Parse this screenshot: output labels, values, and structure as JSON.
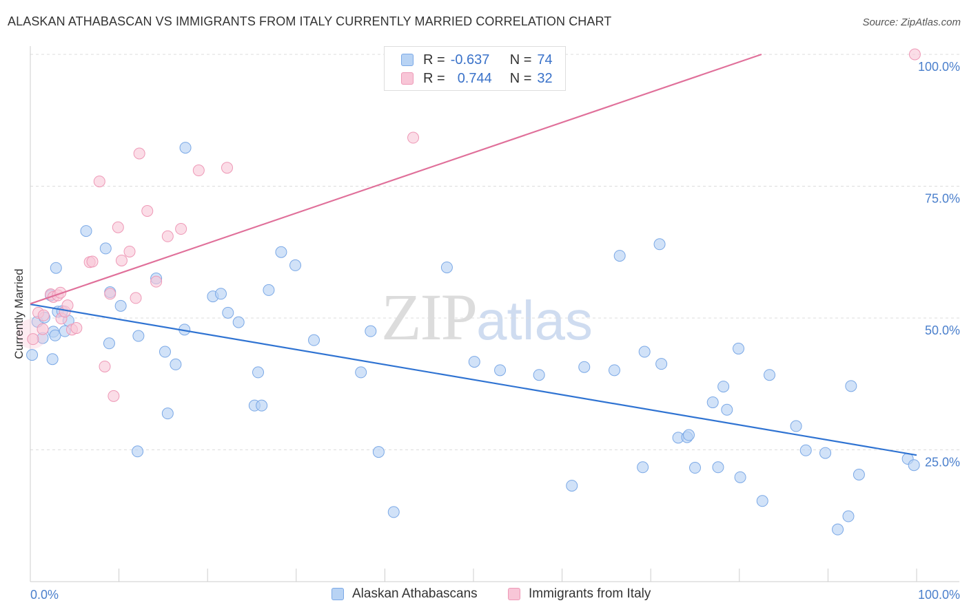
{
  "title": "ALASKAN ATHABASCAN VS IMMIGRANTS FROM ITALY CURRENTLY MARRIED CORRELATION CHART",
  "source": "Source: ZipAtlas.com",
  "watermark": {
    "zip": "ZIP",
    "atlas": "atlas"
  },
  "legend": {
    "rows": [
      {
        "r_label": "R =",
        "r_value": "-0.637",
        "n_label": "N =",
        "n_value": "74"
      },
      {
        "r_label": "R =",
        "r_value": "0.744",
        "n_label": "N =",
        "n_value": "32"
      }
    ]
  },
  "bottom_legend": [
    "Alaskan Athabascans",
    "Immigrants from Italy"
  ],
  "colors": {
    "blue_fill": "#b8d3f4",
    "blue_stroke": "#7aa8e6",
    "blue_line": "#2f73d2",
    "pink_fill": "#f8c6d7",
    "pink_stroke": "#ee98b6",
    "pink_line": "#e0709a",
    "grid": "#dcdcdc",
    "tick_text": "#4a7fcc"
  },
  "chart_data": {
    "type": "scatter",
    "title": "ALASKAN ATHABASCAN VS IMMIGRANTS FROM ITALY CURRENTLY MARRIED CORRELATION CHART",
    "xlabel": "",
    "ylabel": "Currently Married",
    "xlim": [
      0,
      100
    ],
    "ylim": [
      0,
      100
    ],
    "x_tick_labels": [
      "0.0%",
      "100.0%"
    ],
    "y_ticks": [
      {
        "value": 25,
        "label": "25.0%"
      },
      {
        "value": 50,
        "label": "50.0%"
      },
      {
        "value": 75,
        "label": "75.0%"
      },
      {
        "value": 100,
        "label": "100.0%"
      }
    ],
    "grid": "horizontal dashed",
    "legend_position": "top-center",
    "series": [
      {
        "name": "Alaskan Athabascans",
        "r": -0.637,
        "n": 74,
        "trend": {
          "x": [
            0,
            100
          ],
          "y": [
            52.6,
            24.0
          ]
        },
        "points": [
          [
            0.2,
            43.0
          ],
          [
            0.8,
            49.3
          ],
          [
            1.4,
            46.2
          ],
          [
            1.6,
            50.1
          ],
          [
            2.3,
            54.3
          ],
          [
            2.5,
            42.2
          ],
          [
            2.6,
            47.4
          ],
          [
            2.8,
            46.7
          ],
          [
            2.9,
            59.5
          ],
          [
            3.1,
            51.2
          ],
          [
            3.6,
            51.3
          ],
          [
            3.9,
            47.5
          ],
          [
            4.3,
            49.5
          ],
          [
            6.3,
            66.5
          ],
          [
            8.5,
            63.2
          ],
          [
            8.9,
            45.2
          ],
          [
            9.0,
            54.9
          ],
          [
            10.2,
            52.3
          ],
          [
            12.1,
            24.7
          ],
          [
            12.2,
            46.6
          ],
          [
            14.2,
            57.5
          ],
          [
            15.2,
            43.6
          ],
          [
            15.5,
            31.9
          ],
          [
            16.4,
            41.2
          ],
          [
            17.4,
            47.8
          ],
          [
            17.5,
            82.3
          ],
          [
            20.6,
            54.1
          ],
          [
            21.5,
            54.6
          ],
          [
            22.3,
            51.0
          ],
          [
            23.5,
            49.2
          ],
          [
            25.3,
            33.4
          ],
          [
            25.7,
            39.7
          ],
          [
            26.1,
            33.4
          ],
          [
            26.9,
            55.3
          ],
          [
            28.3,
            62.5
          ],
          [
            29.9,
            60.0
          ],
          [
            32.0,
            45.8
          ],
          [
            37.3,
            39.7
          ],
          [
            38.4,
            47.5
          ],
          [
            39.3,
            24.6
          ],
          [
            41.0,
            13.2
          ],
          [
            50.1,
            41.7
          ],
          [
            53.0,
            40.1
          ],
          [
            57.4,
            39.2
          ],
          [
            61.1,
            18.2
          ],
          [
            62.5,
            40.7
          ],
          [
            65.9,
            40.1
          ],
          [
            66.5,
            61.8
          ],
          [
            69.1,
            21.7
          ],
          [
            69.3,
            43.6
          ],
          [
            71.0,
            64.0
          ],
          [
            71.2,
            41.3
          ],
          [
            73.1,
            27.3
          ],
          [
            74.1,
            27.4
          ],
          [
            74.3,
            27.8
          ],
          [
            75.0,
            21.6
          ],
          [
            77.0,
            34.0
          ],
          [
            78.2,
            37.0
          ],
          [
            77.6,
            21.7
          ],
          [
            78.6,
            32.6
          ],
          [
            79.9,
            44.2
          ],
          [
            80.1,
            19.8
          ],
          [
            82.6,
            15.3
          ],
          [
            83.4,
            39.2
          ],
          [
            86.4,
            29.5
          ],
          [
            87.5,
            24.9
          ],
          [
            89.7,
            24.4
          ],
          [
            91.1,
            9.9
          ],
          [
            92.3,
            12.4
          ],
          [
            92.6,
            37.1
          ],
          [
            93.5,
            20.3
          ],
          [
            99.0,
            23.3
          ],
          [
            99.7,
            22.1
          ],
          [
            47.0,
            59.6
          ]
        ]
      },
      {
        "name": "Immigrants from Italy",
        "r": 0.744,
        "n": 32,
        "trend": {
          "x": [
            0,
            82.5
          ],
          "y": [
            52.7,
            100
          ]
        },
        "points": [
          [
            0.3,
            46.0
          ],
          [
            0.9,
            51.0
          ],
          [
            1.4,
            47.9
          ],
          [
            1.5,
            50.5
          ],
          [
            2.3,
            54.5
          ],
          [
            2.6,
            54.0
          ],
          [
            3.1,
            54.3
          ],
          [
            3.4,
            54.8
          ],
          [
            3.5,
            49.9
          ],
          [
            3.9,
            51.2
          ],
          [
            4.2,
            52.4
          ],
          [
            4.7,
            47.8
          ],
          [
            5.2,
            48.1
          ],
          [
            6.7,
            60.6
          ],
          [
            7.0,
            60.7
          ],
          [
            7.8,
            75.9
          ],
          [
            8.4,
            40.8
          ],
          [
            9.0,
            54.6
          ],
          [
            9.4,
            35.2
          ],
          [
            9.9,
            67.2
          ],
          [
            10.3,
            60.9
          ],
          [
            11.2,
            62.6
          ],
          [
            11.9,
            53.8
          ],
          [
            12.3,
            81.2
          ],
          [
            13.2,
            70.3
          ],
          [
            14.2,
            56.9
          ],
          [
            15.5,
            65.5
          ],
          [
            17.0,
            66.9
          ],
          [
            19.0,
            78.0
          ],
          [
            22.2,
            78.5
          ],
          [
            43.2,
            84.2
          ],
          [
            99.8,
            100.0
          ]
        ]
      }
    ]
  }
}
